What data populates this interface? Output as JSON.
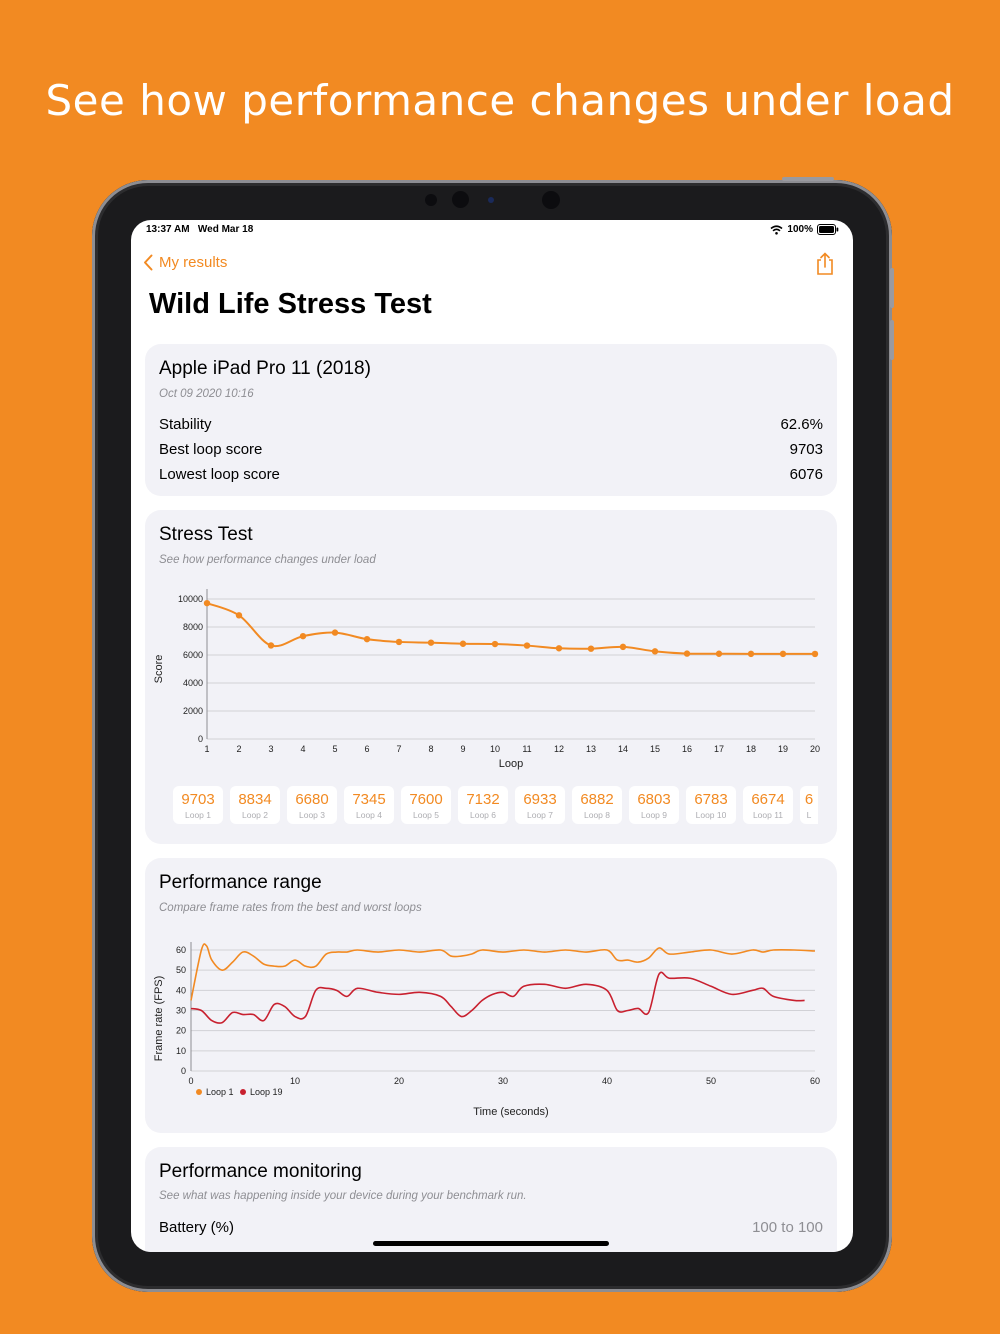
{
  "headline": "See how performance changes under load",
  "status": {
    "time": "13:37 AM",
    "date": "Wed Mar 18",
    "battery": "100%"
  },
  "nav": {
    "back_label": "My results"
  },
  "page_title": "Wild Life Stress Test",
  "summary": {
    "device": "Apple iPad Pro 11 (2018)",
    "datetime": "Oct 09 2020 10:16",
    "rows": [
      {
        "label": "Stability",
        "value": "62.6%"
      },
      {
        "label": "Best loop score",
        "value": "9703"
      },
      {
        "label": "Lowest loop score",
        "value": "6076"
      }
    ]
  },
  "stress": {
    "title": "Stress Test",
    "subtitle": "See how performance changes under load",
    "chips": [
      {
        "score": "9703",
        "label": "Loop 1"
      },
      {
        "score": "8834",
        "label": "Loop 2"
      },
      {
        "score": "6680",
        "label": "Loop 3"
      },
      {
        "score": "7345",
        "label": "Loop 4"
      },
      {
        "score": "7600",
        "label": "Loop 5"
      },
      {
        "score": "7132",
        "label": "Loop 6"
      },
      {
        "score": "6933",
        "label": "Loop 7"
      },
      {
        "score": "6882",
        "label": "Loop 8"
      },
      {
        "score": "6803",
        "label": "Loop 9"
      },
      {
        "score": "6783",
        "label": "Loop 10"
      },
      {
        "score": "6674",
        "label": "Loop 11"
      },
      {
        "score": "6",
        "label": "L"
      }
    ]
  },
  "range": {
    "title": "Performance range",
    "subtitle": "Compare frame rates from the best and worst loops"
  },
  "monitoring": {
    "title": "Performance monitoring",
    "subtitle": "See what was happening inside your device during your benchmark run.",
    "battery_label": "Battery (%)",
    "battery_value": "100 to 100"
  },
  "colors": {
    "accent": "#F28A22",
    "worst": "#C8202F",
    "card": "#F2F2F7"
  },
  "chart_data": [
    {
      "type": "line",
      "title": "",
      "xlabel": "Loop",
      "ylabel": "Score",
      "ylim": [
        0,
        10000
      ],
      "yticks": [
        0,
        2000,
        4000,
        6000,
        8000,
        10000
      ],
      "x": [
        1,
        2,
        3,
        4,
        5,
        6,
        7,
        8,
        9,
        10,
        11,
        12,
        13,
        14,
        15,
        16,
        17,
        18,
        19,
        20
      ],
      "series": [
        {
          "values": [
            9703,
            8834,
            6680,
            7345,
            7600,
            7132,
            6933,
            6882,
            6803,
            6783,
            6674,
            6480,
            6450,
            6580,
            6260,
            6100,
            6090,
            6080,
            6080,
            6076
          ]
        }
      ],
      "grid": true
    },
    {
      "type": "line",
      "title": "",
      "xlabel": "Time (seconds)",
      "ylabel": "Frame rate (FPS)",
      "xlim": [
        0,
        60
      ],
      "ylim": [
        0,
        60
      ],
      "xticks": [
        0,
        10,
        20,
        30,
        40,
        50,
        60
      ],
      "yticks": [
        0,
        10,
        20,
        30,
        40,
        50,
        60
      ],
      "legend": "bottom-left",
      "series": [
        {
          "name": "Loop 1",
          "color": "#F28A22",
          "x": [
            0,
            1,
            1.5,
            2,
            3,
            4,
            5,
            6,
            7,
            8,
            9,
            10,
            11,
            12,
            13,
            14,
            15,
            16,
            18,
            20,
            22,
            24,
            25,
            26,
            27,
            28,
            30,
            32,
            34,
            36,
            38,
            40,
            41,
            42,
            43,
            44,
            45,
            46,
            48,
            50,
            52,
            54,
            55,
            56,
            58,
            60
          ],
          "y": [
            35,
            60,
            62,
            55,
            50,
            54,
            59,
            57,
            53,
            52,
            52,
            55,
            52,
            52,
            58,
            59,
            59,
            60,
            59,
            60,
            59,
            60,
            57,
            57,
            58,
            60,
            59,
            60,
            59,
            60,
            59,
            60,
            55,
            55,
            54,
            56,
            61,
            58,
            59,
            60,
            58,
            60,
            59,
            60,
            60,
            59.5
          ]
        },
        {
          "name": "Loop 19",
          "color": "#C8202F",
          "x": [
            0,
            1,
            2,
            3,
            4,
            5,
            6,
            7,
            8,
            9,
            10,
            11,
            12,
            13,
            14,
            15,
            16,
            18,
            20,
            22,
            24,
            25,
            26,
            27,
            28,
            29,
            30,
            31,
            32,
            34,
            36,
            38,
            40,
            41,
            42,
            43,
            44,
            45,
            46,
            48,
            50,
            52,
            54,
            55,
            56,
            58,
            59
          ],
          "y": [
            31,
            30,
            25,
            24,
            29,
            28,
            28,
            25,
            33,
            32,
            27,
            27,
            40,
            41,
            40,
            37,
            41,
            39,
            38,
            39,
            37,
            32,
            27,
            30,
            35,
            38,
            39,
            37,
            42,
            43,
            41,
            43,
            40,
            30,
            30,
            31,
            29,
            48,
            46,
            46,
            42,
            38,
            40,
            41,
            37,
            35,
            35
          ]
        }
      ],
      "grid": true
    }
  ]
}
